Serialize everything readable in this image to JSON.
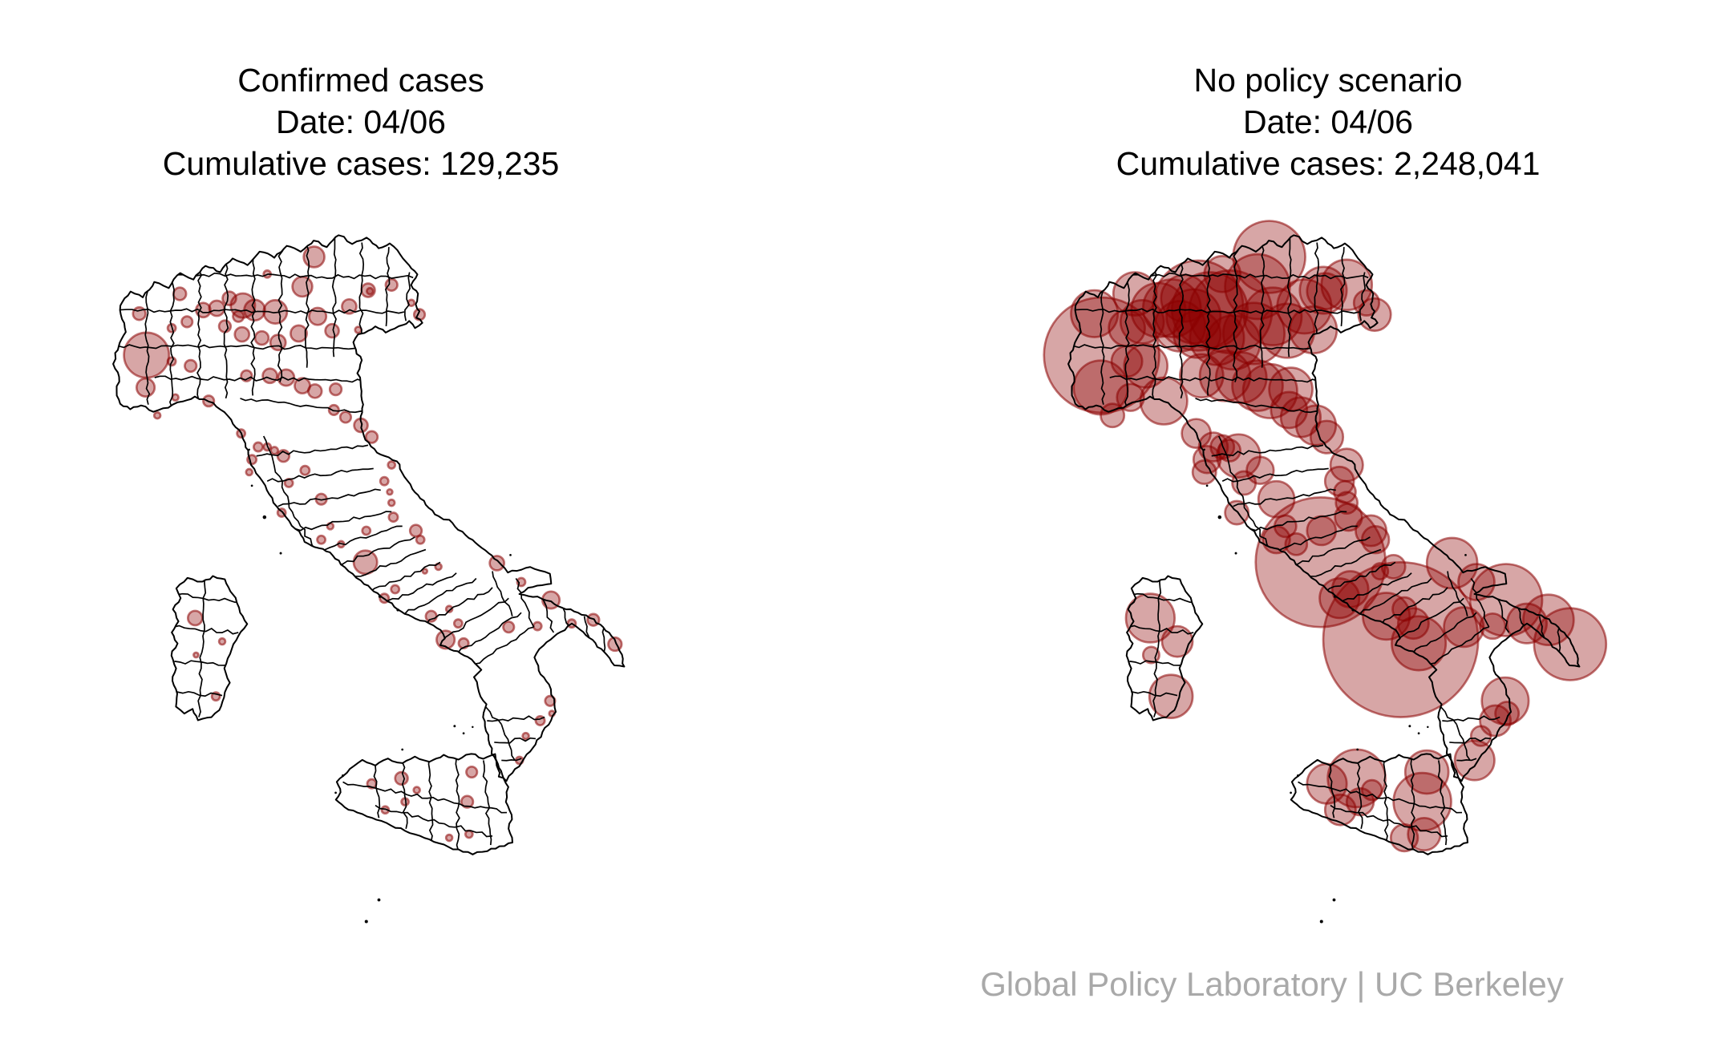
{
  "page": {
    "background": "#ffffff"
  },
  "panels": [
    {
      "id": "confirmed",
      "title": "Confirmed cases",
      "date_label": "Date: 04/06",
      "cumulative_label": "Cumulative cases: 129,235"
    },
    {
      "id": "no-policy",
      "title": "No policy scenario",
      "date_label": "Date: 04/06",
      "cumulative_label": "Cumulative cases: 2,248,041"
    }
  ],
  "attribution": "Global Policy Laboratory | UC Berkeley",
  "colors": {
    "bubble_fill": "#8B0000",
    "bubble_fill_opacity": 0.35,
    "bubble_stroke": "#8B0000",
    "bubble_stroke_opacity": 0.55,
    "boundary": "#000000",
    "title_text": "#000000",
    "attribution_text": "#a9a9a9"
  },
  "chart_data": {
    "type": "bubble-map",
    "region": "Italy, by province",
    "bubble_units": "map SVG coordinates [x, y, radius]",
    "panels": [
      {
        "title": "Confirmed cases",
        "date": "04/06",
        "cumulative_cases": 129235,
        "bubbles": [
          [
            38,
            104,
            7
          ],
          [
            46,
            150,
            25
          ],
          [
            45,
            186,
            10
          ],
          [
            74,
            120,
            4.5
          ],
          [
            83,
            82,
            7
          ],
          [
            91,
            113,
            6
          ],
          [
            74,
            157,
            4.5
          ],
          [
            95,
            162,
            6.5
          ],
          [
            115,
            201,
            6
          ],
          [
            78,
            197,
            3.5
          ],
          [
            58,
            217,
            3.5
          ],
          [
            151,
            237,
            4.5
          ],
          [
            180,
            60,
            4
          ],
          [
            109,
            100,
            8
          ],
          [
            124,
            98,
            8.5
          ],
          [
            138,
            87,
            7.5
          ],
          [
            153,
            95,
            13.5
          ],
          [
            148,
            107,
            6
          ],
          [
            166,
            100,
            11.5
          ],
          [
            189,
            102,
            13
          ],
          [
            133,
            118,
            6.5
          ],
          [
            152,
            127,
            8
          ],
          [
            174,
            131,
            7.5
          ],
          [
            192,
            136,
            8.5
          ],
          [
            232,
            41,
            11.5
          ],
          [
            219,
            74,
            11
          ],
          [
            215,
            126,
            9
          ],
          [
            236,
            107,
            9.5
          ],
          [
            292,
            78,
            7.5
          ],
          [
            271,
            96,
            8
          ],
          [
            252,
            123,
            7.5
          ],
          [
            281,
            122,
            3.5
          ],
          [
            294,
            79,
            3.5
          ],
          [
            318,
            72,
            6.5
          ],
          [
            340,
            92,
            3.5
          ],
          [
            349,
            105,
            6
          ],
          [
            157,
            173,
            6
          ],
          [
            183,
            173,
            8
          ],
          [
            201,
            175,
            9
          ],
          [
            219,
            184,
            8.5
          ],
          [
            233,
            190,
            7.5
          ],
          [
            256,
            188,
            6.5
          ],
          [
            254,
            211,
            5.5
          ],
          [
            267,
            219,
            6
          ],
          [
            284,
            228,
            7.5
          ],
          [
            296,
            241,
            6.5
          ],
          [
            318,
            272,
            4
          ],
          [
            310,
            290,
            4.5
          ],
          [
            316,
            302,
            3
          ],
          [
            318,
            314,
            3.5
          ],
          [
            170,
            252,
            5
          ],
          [
            180,
            252,
            4
          ],
          [
            188,
            256,
            4
          ],
          [
            198,
            262,
            6.5
          ],
          [
            163,
            266,
            5
          ],
          [
            160,
            280,
            3.5
          ],
          [
            222,
            278,
            5
          ],
          [
            204,
            292,
            4.5
          ],
          [
            196,
            325,
            4.5
          ],
          [
            240,
            310,
            6
          ],
          [
            250,
            340,
            3.5
          ],
          [
            240,
            355,
            4.5
          ],
          [
            262,
            360,
            3.5
          ],
          [
            289,
            380,
            13
          ],
          [
            310,
            420,
            5
          ],
          [
            322,
            410,
            4.5
          ],
          [
            290,
            345,
            4.5
          ],
          [
            320,
            330,
            5
          ],
          [
            345,
            345,
            6.5
          ],
          [
            350,
            355,
            4.5
          ],
          [
            355,
            390,
            2.6
          ],
          [
            370,
            385,
            3.5
          ],
          [
            362,
            440,
            6
          ],
          [
            382,
            432,
            3.5
          ],
          [
            378,
            466,
            10
          ],
          [
            392,
            448,
            4.5
          ],
          [
            398,
            470,
            5.5
          ],
          [
            435,
            381,
            8
          ],
          [
            462,
            402,
            4.5
          ],
          [
            495,
            422,
            9.5
          ],
          [
            518,
            448,
            4.5
          ],
          [
            542,
            444,
            6.5
          ],
          [
            566,
            471,
            7.4
          ],
          [
            480,
            451,
            4.5
          ],
          [
            448,
            452,
            6
          ],
          [
            494,
            534,
            5.5
          ],
          [
            496,
            548,
            3
          ],
          [
            483,
            556,
            5
          ],
          [
            467,
            573,
            3.5
          ],
          [
            460,
            600,
            4
          ],
          [
            329,
            620,
            7
          ],
          [
            296,
            626,
            5
          ],
          [
            407,
            613,
            6
          ],
          [
            311,
            655,
            4
          ],
          [
            333,
            646,
            4
          ],
          [
            346,
            633,
            3.5
          ],
          [
            402,
            646,
            6.5
          ],
          [
            382,
            686,
            3.5
          ],
          [
            404,
            682,
            4
          ],
          [
            100,
            442,
            8
          ],
          [
            130,
            468,
            3.5
          ],
          [
            101,
            483,
            2.7
          ],
          [
            123,
            529,
            4.5
          ]
        ]
      },
      {
        "title": "No policy scenario",
        "date": "04/06",
        "cumulative_cases": 2248041,
        "bubbles": [
          [
            38,
            104,
            26
          ],
          [
            46,
            150,
            64
          ],
          [
            45,
            186,
            30
          ],
          [
            74,
            120,
            20
          ],
          [
            83,
            82,
            24
          ],
          [
            91,
            113,
            24
          ],
          [
            74,
            157,
            17
          ],
          [
            95,
            162,
            24
          ],
          [
            115,
            201,
            26
          ],
          [
            78,
            197,
            15
          ],
          [
            58,
            217,
            13
          ],
          [
            151,
            237,
            16
          ],
          [
            180,
            60,
            20
          ],
          [
            109,
            100,
            30
          ],
          [
            124,
            98,
            32
          ],
          [
            138,
            87,
            26
          ],
          [
            153,
            95,
            50
          ],
          [
            148,
            107,
            30
          ],
          [
            166,
            100,
            42
          ],
          [
            189,
            102,
            46
          ],
          [
            133,
            118,
            28
          ],
          [
            152,
            127,
            26
          ],
          [
            174,
            131,
            30
          ],
          [
            192,
            136,
            30
          ],
          [
            232,
            41,
            40
          ],
          [
            219,
            74,
            36
          ],
          [
            215,
            126,
            34
          ],
          [
            236,
            107,
            32
          ],
          [
            292,
            78,
            26
          ],
          [
            271,
            96,
            30
          ],
          [
            252,
            123,
            30
          ],
          [
            281,
            122,
            26
          ],
          [
            294,
            79,
            20
          ],
          [
            318,
            72,
            28
          ],
          [
            340,
            92,
            14
          ],
          [
            349,
            105,
            18
          ],
          [
            157,
            173,
            24
          ],
          [
            183,
            173,
            28
          ],
          [
            201,
            175,
            28
          ],
          [
            219,
            184,
            28
          ],
          [
            233,
            190,
            30
          ],
          [
            256,
            188,
            24
          ],
          [
            254,
            211,
            20
          ],
          [
            267,
            219,
            22
          ],
          [
            284,
            228,
            22
          ],
          [
            296,
            241,
            18
          ],
          [
            318,
            272,
            18
          ],
          [
            310,
            290,
            16
          ],
          [
            316,
            302,
            12
          ],
          [
            318,
            314,
            12
          ],
          [
            170,
            252,
            16
          ],
          [
            180,
            252,
            13
          ],
          [
            188,
            256,
            12
          ],
          [
            198,
            262,
            24
          ],
          [
            163,
            266,
            15
          ],
          [
            160,
            280,
            13
          ],
          [
            222,
            278,
            15
          ],
          [
            204,
            292,
            13
          ],
          [
            196,
            325,
            13
          ],
          [
            240,
            310,
            20
          ],
          [
            250,
            340,
            12
          ],
          [
            240,
            355,
            15
          ],
          [
            262,
            360,
            12
          ],
          [
            289,
            380,
            72
          ],
          [
            310,
            420,
            22
          ],
          [
            322,
            410,
            20
          ],
          [
            290,
            345,
            16
          ],
          [
            320,
            330,
            15
          ],
          [
            345,
            345,
            17
          ],
          [
            350,
            355,
            15
          ],
          [
            355,
            390,
            9
          ],
          [
            370,
            385,
            13
          ],
          [
            362,
            440,
            26
          ],
          [
            382,
            432,
            13
          ],
          [
            378,
            466,
            86
          ],
          [
            392,
            448,
            17
          ],
          [
            398,
            470,
            30
          ],
          [
            435,
            381,
            28
          ],
          [
            462,
            402,
            20
          ],
          [
            495,
            422,
            40
          ],
          [
            518,
            448,
            22
          ],
          [
            542,
            444,
            28
          ],
          [
            566,
            471,
            40
          ],
          [
            480,
            451,
            14
          ],
          [
            448,
            452,
            22
          ],
          [
            494,
            534,
            26
          ],
          [
            496,
            548,
            13
          ],
          [
            483,
            556,
            17
          ],
          [
            467,
            573,
            11
          ],
          [
            460,
            600,
            22
          ],
          [
            329,
            620,
            32
          ],
          [
            296,
            626,
            22
          ],
          [
            407,
            613,
            24
          ],
          [
            311,
            655,
            17
          ],
          [
            333,
            646,
            15
          ],
          [
            346,
            633,
            11
          ],
          [
            402,
            646,
            32
          ],
          [
            382,
            686,
            15
          ],
          [
            404,
            682,
            18
          ],
          [
            100,
            442,
            27
          ],
          [
            130,
            468,
            17
          ],
          [
            101,
            483,
            9
          ],
          [
            123,
            529,
            24
          ]
        ]
      }
    ]
  }
}
